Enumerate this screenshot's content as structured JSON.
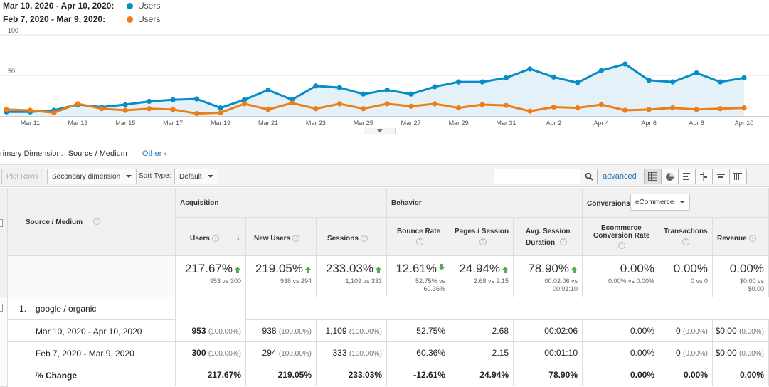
{
  "legend": [
    {
      "range": "Mar 10, 2020 - Apr 10, 2020:",
      "label": "Users",
      "color": "#058dc7"
    },
    {
      "range": "Feb 7, 2020 - Mar 9, 2020:",
      "label": "Users",
      "color": "#ed7e17"
    }
  ],
  "chart_data": {
    "type": "line",
    "x_ticks": [
      "Mar 11",
      "Mar 13",
      "Mar 15",
      "Mar 17",
      "Mar 19",
      "Mar 21",
      "Mar 23",
      "Mar 25",
      "Mar 27",
      "Mar 29",
      "Mar 31",
      "Apr 2",
      "Apr 4",
      "Apr 6",
      "Apr 8",
      "Apr 10"
    ],
    "y_ticks": [
      "100",
      "50"
    ],
    "ylim": [
      0,
      100
    ],
    "series": [
      {
        "name": "Users",
        "color": "#058dc7",
        "values": [
          5,
          5,
          7,
          14,
          11,
          14,
          18,
          20,
          21,
          10,
          20,
          32,
          20,
          37,
          35,
          27,
          32,
          27,
          36,
          42,
          42,
          47,
          58,
          48,
          41,
          56,
          64,
          44,
          42,
          53,
          42,
          47
        ]
      },
      {
        "name": "Users",
        "color": "#ed7e17",
        "values": [
          8,
          7,
          4,
          15,
          9,
          7,
          9,
          8,
          3,
          4,
          15,
          8,
          16,
          9,
          15,
          9,
          15,
          12,
          15,
          10,
          14,
          13,
          6,
          11,
          10,
          14,
          7,
          8,
          10,
          8,
          9,
          10
        ]
      }
    ]
  },
  "primary_dimension": {
    "label": "rimary Dimension:",
    "value": "Source / Medium",
    "other": "Other"
  },
  "toolbar": {
    "plot_rows": "Plot Rows",
    "secondary": "Secondary dimension",
    "sort_label": "Sort Type:",
    "sort_value": "Default",
    "advanced": "advanced"
  },
  "headers": {
    "source_medium": "Source / Medium",
    "acquisition": "Acquisition",
    "behavior": "Behavior",
    "conversions": "Conversions",
    "conv_select": "eCommerce",
    "users": "Users",
    "new_users": "New Users",
    "sessions": "Sessions",
    "bounce": "Bounce Rate",
    "pps": "Pages / Session",
    "avg1": "Avg. Session",
    "avg2": "Duration",
    "ecr1": "Ecommerce",
    "ecr2": "Conversion Rate",
    "transactions": "Transactions",
    "revenue": "Revenue"
  },
  "totals": {
    "users": {
      "big": "217.67%",
      "sub": "953 vs 300",
      "dir": "up"
    },
    "new_users": {
      "big": "219.05%",
      "sub": "938 vs 294",
      "dir": "up"
    },
    "sessions": {
      "big": "233.03%",
      "sub": "1,109 vs 333",
      "dir": "up"
    },
    "bounce": {
      "big": "12.61%",
      "sub1": "52.75% vs",
      "sub2": "60.36%",
      "dir": "down"
    },
    "pps": {
      "big": "24.94%",
      "sub": "2.68 vs 2.15",
      "dir": "up"
    },
    "avg": {
      "big": "78.90%",
      "sub1": "00:02:06 vs",
      "sub2": "00:01:10",
      "dir": "up"
    },
    "ecr": {
      "big": "0.00%",
      "sub": "0.00% vs 0.00%"
    },
    "trans": {
      "big": "0.00%",
      "sub": "0 vs 0"
    },
    "rev": {
      "big": "0.00%",
      "sub1": "$0.00 vs",
      "sub2": "$0.00"
    }
  },
  "row": {
    "index": "1.",
    "name": "google / organic"
  },
  "rows": [
    {
      "label": "Mar 10, 2020 - Apr 10, 2020",
      "users": "953",
      "users_pct": "(100.00%)",
      "new_users": "938",
      "new_pct": "(100.00%)",
      "sessions": "1,109",
      "sess_pct": "(100.00%)",
      "bounce": "52.75%",
      "pps": "2.68",
      "avg": "00:02:06",
      "ecr": "0.00%",
      "trans": "0",
      "trans_pct": "(0.00%)",
      "rev": "$0.00",
      "rev_pct": "(0.00%)"
    },
    {
      "label": "Feb 7, 2020 - Mar 9, 2020",
      "users": "300",
      "users_pct": "(100.00%)",
      "new_users": "294",
      "new_pct": "(100.00%)",
      "sessions": "333",
      "sess_pct": "(100.00%)",
      "bounce": "60.36%",
      "pps": "2.15",
      "avg": "00:01:10",
      "ecr": "0.00%",
      "trans": "0",
      "trans_pct": "(0.00%)",
      "rev": "$0.00",
      "rev_pct": "(0.00%)"
    }
  ],
  "change": {
    "label": "% Change",
    "users": "217.67%",
    "new_users": "219.05%",
    "sessions": "233.03%",
    "bounce": "-12.61%",
    "pps": "24.94%",
    "avg": "78.90%",
    "ecr": "0.00%",
    "trans": "0.00%",
    "rev": "0.00%"
  }
}
